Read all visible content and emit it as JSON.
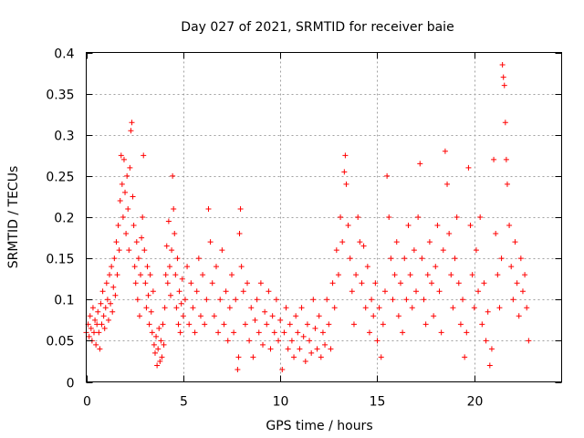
{
  "chart_data": {
    "type": "scatter",
    "title": "Day 027 of 2021, SRMTID for receiver baie",
    "xlabel": "GPS time / hours",
    "ylabel": "SRMTID / TECUs",
    "xlim": [
      0,
      24.5
    ],
    "ylim": [
      0,
      0.4
    ],
    "xticks": [
      0,
      5,
      10,
      15,
      20
    ],
    "xtick_labels": [
      "0",
      "5",
      "10",
      "15",
      "20"
    ],
    "yticks": [
      0,
      0.05,
      0.1,
      0.15,
      0.2,
      0.25,
      0.3,
      0.35,
      0.4
    ],
    "ytick_labels": [
      "0",
      "0.05",
      "0.1",
      "0.15",
      "0.2",
      "0.25",
      "0.3",
      "0.35",
      "0.4"
    ],
    "grid": true,
    "marker": "plus",
    "color": "#ff0000",
    "series": [
      {
        "name": "SRMTID",
        "points": [
          [
            0.0,
            0.06
          ],
          [
            0.1,
            0.07
          ],
          [
            0.15,
            0.055
          ],
          [
            0.2,
            0.08
          ],
          [
            0.25,
            0.065
          ],
          [
            0.3,
            0.05
          ],
          [
            0.35,
            0.09
          ],
          [
            0.4,
            0.06
          ],
          [
            0.45,
            0.075
          ],
          [
            0.5,
            0.045
          ],
          [
            0.55,
            0.07
          ],
          [
            0.6,
            0.085
          ],
          [
            0.65,
            0.06
          ],
          [
            0.7,
            0.04
          ],
          [
            0.75,
            0.095
          ],
          [
            0.8,
            0.07
          ],
          [
            0.85,
            0.11
          ],
          [
            0.9,
            0.08
          ],
          [
            0.95,
            0.065
          ],
          [
            1.0,
            0.09
          ],
          [
            1.05,
            0.12
          ],
          [
            1.1,
            0.1
          ],
          [
            1.15,
            0.075
          ],
          [
            1.2,
            0.13
          ],
          [
            1.25,
            0.095
          ],
          [
            1.3,
            0.14
          ],
          [
            1.35,
            0.085
          ],
          [
            1.4,
            0.115
          ],
          [
            1.45,
            0.15
          ],
          [
            1.5,
            0.105
          ],
          [
            1.55,
            0.17
          ],
          [
            1.6,
            0.13
          ],
          [
            1.65,
            0.19
          ],
          [
            1.7,
            0.16
          ],
          [
            1.75,
            0.22
          ],
          [
            1.8,
            0.275
          ],
          [
            1.85,
            0.24
          ],
          [
            1.9,
            0.2
          ],
          [
            1.95,
            0.27
          ],
          [
            2.0,
            0.23
          ],
          [
            2.05,
            0.18
          ],
          [
            2.1,
            0.25
          ],
          [
            2.15,
            0.21
          ],
          [
            2.2,
            0.16
          ],
          [
            2.25,
            0.26
          ],
          [
            2.3,
            0.305
          ],
          [
            2.35,
            0.315
          ],
          [
            2.4,
            0.225
          ],
          [
            2.45,
            0.19
          ],
          [
            2.5,
            0.14
          ],
          [
            2.55,
            0.12
          ],
          [
            2.6,
            0.17
          ],
          [
            2.65,
            0.1
          ],
          [
            2.7,
            0.15
          ],
          [
            2.75,
            0.08
          ],
          [
            2.8,
            0.13
          ],
          [
            2.85,
            0.175
          ],
          [
            2.9,
            0.2
          ],
          [
            2.95,
            0.275
          ],
          [
            3.0,
            0.16
          ],
          [
            3.05,
            0.12
          ],
          [
            3.1,
            0.09
          ],
          [
            3.15,
            0.14
          ],
          [
            3.2,
            0.105
          ],
          [
            3.25,
            0.07
          ],
          [
            3.3,
            0.13
          ],
          [
            3.35,
            0.085
          ],
          [
            3.4,
            0.06
          ],
          [
            3.45,
            0.11
          ],
          [
            3.5,
            0.045
          ],
          [
            3.55,
            0.035
          ],
          [
            3.6,
            0.055
          ],
          [
            3.65,
            0.02
          ],
          [
            3.7,
            0.04
          ],
          [
            3.75,
            0.065
          ],
          [
            3.8,
            0.025
          ],
          [
            3.85,
            0.05
          ],
          [
            3.9,
            0.03
          ],
          [
            3.95,
            0.07
          ],
          [
            4.0,
            0.045
          ],
          [
            4.05,
            0.09
          ],
          [
            4.1,
            0.13
          ],
          [
            4.15,
            0.165
          ],
          [
            4.2,
            0.12
          ],
          [
            4.25,
            0.195
          ],
          [
            4.3,
            0.14
          ],
          [
            4.35,
            0.105
          ],
          [
            4.4,
            0.16
          ],
          [
            4.45,
            0.25
          ],
          [
            4.5,
            0.21
          ],
          [
            4.55,
            0.18
          ],
          [
            4.6,
            0.13
          ],
          [
            4.65,
            0.09
          ],
          [
            4.7,
            0.15
          ],
          [
            4.75,
            0.07
          ],
          [
            4.8,
            0.11
          ],
          [
            4.85,
            0.06
          ],
          [
            4.9,
            0.095
          ],
          [
            4.95,
            0.125
          ],
          [
            5.0,
            0.08
          ],
          [
            5.1,
            0.1
          ],
          [
            5.2,
            0.14
          ],
          [
            5.3,
            0.07
          ],
          [
            5.4,
            0.12
          ],
          [
            5.5,
            0.09
          ],
          [
            5.6,
            0.06
          ],
          [
            5.7,
            0.11
          ],
          [
            5.8,
            0.15
          ],
          [
            5.9,
            0.08
          ],
          [
            6.0,
            0.13
          ],
          [
            6.1,
            0.07
          ],
          [
            6.2,
            0.1
          ],
          [
            6.3,
            0.21
          ],
          [
            6.4,
            0.17
          ],
          [
            6.5,
            0.12
          ],
          [
            6.6,
            0.08
          ],
          [
            6.7,
            0.14
          ],
          [
            6.8,
            0.06
          ],
          [
            6.9,
            0.1
          ],
          [
            7.0,
            0.16
          ],
          [
            7.1,
            0.07
          ],
          [
            7.2,
            0.11
          ],
          [
            7.3,
            0.05
          ],
          [
            7.4,
            0.09
          ],
          [
            7.5,
            0.13
          ],
          [
            7.6,
            0.06
          ],
          [
            7.7,
            0.1
          ],
          [
            7.8,
            0.015
          ],
          [
            7.85,
            0.03
          ],
          [
            7.9,
            0.18
          ],
          [
            7.95,
            0.21
          ],
          [
            8.0,
            0.14
          ],
          [
            8.1,
            0.11
          ],
          [
            8.2,
            0.07
          ],
          [
            8.3,
            0.12
          ],
          [
            8.4,
            0.05
          ],
          [
            8.5,
            0.09
          ],
          [
            8.6,
            0.03
          ],
          [
            8.7,
            0.075
          ],
          [
            8.8,
            0.1
          ],
          [
            8.9,
            0.06
          ],
          [
            9.0,
            0.12
          ],
          [
            9.1,
            0.045
          ],
          [
            9.2,
            0.085
          ],
          [
            9.3,
            0.07
          ],
          [
            9.4,
            0.11
          ],
          [
            9.5,
            0.04
          ],
          [
            9.6,
            0.08
          ],
          [
            9.7,
            0.06
          ],
          [
            9.8,
            0.1
          ],
          [
            9.9,
            0.05
          ],
          [
            10.0,
            0.075
          ],
          [
            10.1,
            0.015
          ],
          [
            10.2,
            0.06
          ],
          [
            10.3,
            0.09
          ],
          [
            10.4,
            0.04
          ],
          [
            10.5,
            0.07
          ],
          [
            10.6,
            0.05
          ],
          [
            10.7,
            0.03
          ],
          [
            10.8,
            0.08
          ],
          [
            10.9,
            0.06
          ],
          [
            11.0,
            0.04
          ],
          [
            11.1,
            0.09
          ],
          [
            11.2,
            0.055
          ],
          [
            11.3,
            0.025
          ],
          [
            11.4,
            0.07
          ],
          [
            11.5,
            0.05
          ],
          [
            11.6,
            0.035
          ],
          [
            11.7,
            0.1
          ],
          [
            11.8,
            0.065
          ],
          [
            11.9,
            0.04
          ],
          [
            12.0,
            0.08
          ],
          [
            12.1,
            0.03
          ],
          [
            12.2,
            0.06
          ],
          [
            12.3,
            0.045
          ],
          [
            12.4,
            0.1
          ],
          [
            12.5,
            0.07
          ],
          [
            12.6,
            0.04
          ],
          [
            12.7,
            0.12
          ],
          [
            12.8,
            0.09
          ],
          [
            12.9,
            0.16
          ],
          [
            13.0,
            0.13
          ],
          [
            13.1,
            0.2
          ],
          [
            13.2,
            0.17
          ],
          [
            13.3,
            0.255
          ],
          [
            13.35,
            0.275
          ],
          [
            13.4,
            0.24
          ],
          [
            13.5,
            0.19
          ],
          [
            13.6,
            0.15
          ],
          [
            13.7,
            0.11
          ],
          [
            13.8,
            0.07
          ],
          [
            13.9,
            0.13
          ],
          [
            14.0,
            0.2
          ],
          [
            14.1,
            0.17
          ],
          [
            14.2,
            0.12
          ],
          [
            14.3,
            0.165
          ],
          [
            14.4,
            0.09
          ],
          [
            14.5,
            0.14
          ],
          [
            14.6,
            0.06
          ],
          [
            14.7,
            0.1
          ],
          [
            14.8,
            0.08
          ],
          [
            14.9,
            0.12
          ],
          [
            15.0,
            0.05
          ],
          [
            15.1,
            0.09
          ],
          [
            15.2,
            0.03
          ],
          [
            15.3,
            0.07
          ],
          [
            15.4,
            0.11
          ],
          [
            15.5,
            0.25
          ],
          [
            15.6,
            0.2
          ],
          [
            15.7,
            0.15
          ],
          [
            15.8,
            0.1
          ],
          [
            15.9,
            0.13
          ],
          [
            16.0,
            0.17
          ],
          [
            16.1,
            0.08
          ],
          [
            16.2,
            0.12
          ],
          [
            16.3,
            0.06
          ],
          [
            16.4,
            0.15
          ],
          [
            16.5,
            0.1
          ],
          [
            16.6,
            0.19
          ],
          [
            16.7,
            0.13
          ],
          [
            16.8,
            0.09
          ],
          [
            16.9,
            0.16
          ],
          [
            17.0,
            0.11
          ],
          [
            17.1,
            0.2
          ],
          [
            17.2,
            0.265
          ],
          [
            17.3,
            0.15
          ],
          [
            17.4,
            0.1
          ],
          [
            17.5,
            0.07
          ],
          [
            17.6,
            0.13
          ],
          [
            17.7,
            0.17
          ],
          [
            17.8,
            0.12
          ],
          [
            17.9,
            0.08
          ],
          [
            18.0,
            0.14
          ],
          [
            18.1,
            0.19
          ],
          [
            18.2,
            0.11
          ],
          [
            18.3,
            0.06
          ],
          [
            18.4,
            0.16
          ],
          [
            18.5,
            0.28
          ],
          [
            18.6,
            0.24
          ],
          [
            18.7,
            0.18
          ],
          [
            18.8,
            0.13
          ],
          [
            18.9,
            0.09
          ],
          [
            19.0,
            0.15
          ],
          [
            19.1,
            0.2
          ],
          [
            19.2,
            0.12
          ],
          [
            19.3,
            0.07
          ],
          [
            19.4,
            0.1
          ],
          [
            19.5,
            0.03
          ],
          [
            19.6,
            0.06
          ],
          [
            19.7,
            0.26
          ],
          [
            19.8,
            0.19
          ],
          [
            19.9,
            0.13
          ],
          [
            20.0,
            0.09
          ],
          [
            20.1,
            0.16
          ],
          [
            20.2,
            0.11
          ],
          [
            20.3,
            0.2
          ],
          [
            20.4,
            0.07
          ],
          [
            20.5,
            0.12
          ],
          [
            20.6,
            0.05
          ],
          [
            20.7,
            0.085
          ],
          [
            20.8,
            0.02
          ],
          [
            20.9,
            0.04
          ],
          [
            21.0,
            0.27
          ],
          [
            21.1,
            0.18
          ],
          [
            21.2,
            0.13
          ],
          [
            21.3,
            0.09
          ],
          [
            21.4,
            0.15
          ],
          [
            21.45,
            0.385
          ],
          [
            21.5,
            0.37
          ],
          [
            21.55,
            0.36
          ],
          [
            21.6,
            0.315
          ],
          [
            21.65,
            0.27
          ],
          [
            21.7,
            0.24
          ],
          [
            21.8,
            0.19
          ],
          [
            21.9,
            0.14
          ],
          [
            22.0,
            0.1
          ],
          [
            22.1,
            0.17
          ],
          [
            22.2,
            0.12
          ],
          [
            22.3,
            0.08
          ],
          [
            22.4,
            0.15
          ],
          [
            22.5,
            0.11
          ],
          [
            22.6,
            0.13
          ],
          [
            22.7,
            0.09
          ],
          [
            22.8,
            0.05
          ]
        ]
      }
    ]
  }
}
